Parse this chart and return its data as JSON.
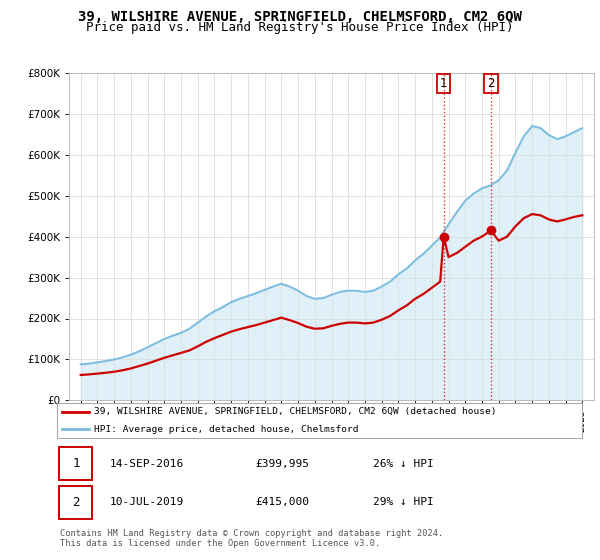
{
  "title": "39, WILSHIRE AVENUE, SPRINGFIELD, CHELMSFORD, CM2 6QW",
  "subtitle": "Price paid vs. HM Land Registry's House Price Index (HPI)",
  "ylim": [
    0,
    800000
  ],
  "yticks": [
    0,
    100000,
    200000,
    300000,
    400000,
    500000,
    600000,
    700000,
    800000
  ],
  "ytick_labels": [
    "£0",
    "£100K",
    "£200K",
    "£300K",
    "£400K",
    "£500K",
    "£600K",
    "£700K",
    "£800K"
  ],
  "background_color": "#ffffff",
  "plot_bg_color": "#ffffff",
  "grid_color": "#dddddd",
  "hpi_color": "#7bbde0",
  "hpi_fill_color": "#c8e4f4",
  "price_color": "#cc0000",
  "sale1_date": 2016.71,
  "sale1_price": 399995,
  "sale2_date": 2019.53,
  "sale2_price": 415000,
  "legend_entry1": "39, WILSHIRE AVENUE, SPRINGFIELD, CHELMSFORD, CM2 6QW (detached house)",
  "legend_entry2": "HPI: Average price, detached house, Chelmsford",
  "table_row1": [
    "1",
    "14-SEP-2016",
    "£399,995",
    "26% ↓ HPI"
  ],
  "table_row2": [
    "2",
    "10-JUL-2019",
    "£415,000",
    "29% ↓ HPI"
  ],
  "footnote": "Contains HM Land Registry data © Crown copyright and database right 2024.\nThis data is licensed under the Open Government Licence v3.0.",
  "title_fontsize": 10,
  "subtitle_fontsize": 9,
  "years_hpi": [
    1995,
    1995.5,
    1996,
    1996.5,
    1997,
    1997.5,
    1998,
    1998.5,
    1999,
    1999.5,
    2000,
    2000.5,
    2001,
    2001.5,
    2002,
    2002.5,
    2003,
    2003.5,
    2004,
    2004.5,
    2005,
    2005.5,
    2006,
    2006.5,
    2007,
    2007.5,
    2008,
    2008.5,
    2009,
    2009.5,
    2010,
    2010.5,
    2011,
    2011.5,
    2012,
    2012.5,
    2013,
    2013.5,
    2014,
    2014.5,
    2015,
    2015.5,
    2016,
    2016.5,
    2017,
    2017.5,
    2018,
    2018.5,
    2019,
    2019.5,
    2020,
    2020.5,
    2021,
    2021.5,
    2022,
    2022.5,
    2023,
    2023.5,
    2024,
    2024.5,
    2025
  ],
  "hpi_values": [
    88000,
    90000,
    93000,
    96000,
    100000,
    105000,
    112000,
    120000,
    130000,
    140000,
    150000,
    158000,
    165000,
    175000,
    190000,
    205000,
    218000,
    228000,
    240000,
    248000,
    255000,
    262000,
    270000,
    278000,
    285000,
    278000,
    268000,
    255000,
    248000,
    250000,
    258000,
    265000,
    268000,
    268000,
    265000,
    268000,
    278000,
    290000,
    308000,
    322000,
    342000,
    358000,
    378000,
    398000,
    430000,
    460000,
    488000,
    505000,
    518000,
    525000,
    538000,
    562000,
    605000,
    645000,
    670000,
    665000,
    648000,
    638000,
    645000,
    655000,
    665000
  ],
  "red_years": [
    1995,
    1995.5,
    1996,
    1996.5,
    1997,
    1997.5,
    1998,
    1998.5,
    1999,
    1999.5,
    2000,
    2000.5,
    2001,
    2001.5,
    2002,
    2002.5,
    2003,
    2003.5,
    2004,
    2004.5,
    2005,
    2005.5,
    2006,
    2006.5,
    2007,
    2007.5,
    2008,
    2008.5,
    2009,
    2009.5,
    2010,
    2010.5,
    2011,
    2011.5,
    2012,
    2012.5,
    2013,
    2013.5,
    2014,
    2014.5,
    2015,
    2015.5,
    2016,
    2016.5,
    2016.71,
    2017,
    2017.5,
    2018,
    2018.5,
    2019,
    2019.53,
    2020,
    2020.5,
    2021,
    2021.5,
    2022,
    2022.5,
    2023,
    2023.5,
    2024,
    2024.5,
    2025
  ],
  "red_values": [
    62000,
    63500,
    65500,
    67500,
    70000,
    73500,
    78000,
    84000,
    90000,
    97000,
    104000,
    110000,
    116000,
    122000,
    132000,
    143000,
    152000,
    160000,
    168000,
    174000,
    179000,
    184000,
    190000,
    196000,
    202000,
    196000,
    189000,
    180000,
    175000,
    176000,
    182000,
    187000,
    190000,
    190000,
    188000,
    190000,
    197000,
    206000,
    220000,
    232000,
    248000,
    260000,
    275000,
    290000,
    399995,
    350000,
    360000,
    375000,
    390000,
    400000,
    415000,
    390000,
    400000,
    425000,
    445000,
    455000,
    452000,
    442000,
    437000,
    442000,
    448000,
    452000
  ]
}
